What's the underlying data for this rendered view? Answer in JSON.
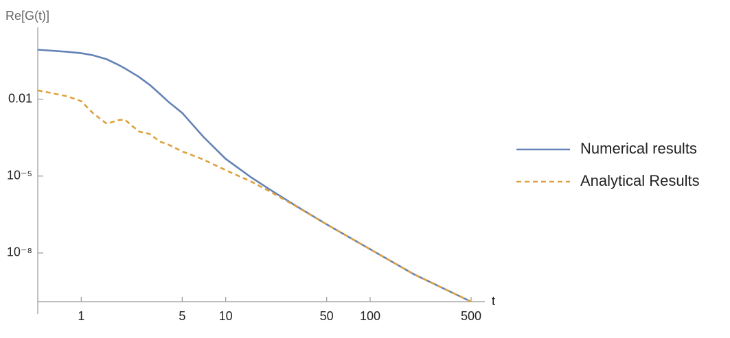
{
  "chart_data": {
    "type": "line",
    "x_label": "t",
    "y_label": "Re[G(t)]",
    "x": [
      0.5,
      0.8,
      1,
      1.2,
      1.5,
      1.8,
      2,
      2.5,
      3,
      3.5,
      4,
      5,
      7,
      10,
      15,
      20,
      30,
      50,
      100,
      200,
      500
    ],
    "series": [
      {
        "name": "Numerical results",
        "color": "#6482b6",
        "dashed": false,
        "values": [
          0.85,
          0.7,
          0.62,
          0.52,
          0.36,
          0.22,
          0.16,
          0.075,
          0.035,
          0.016,
          0.008,
          0.0029,
          0.00034,
          4.7e-05,
          8.9e-06,
          3.1e-06,
          7.4e-07,
          1.3e-07,
          1.4e-08,
          1.5e-09,
          1.26e-10
        ]
      },
      {
        "name": "Analytical Results",
        "color": "#dca13e",
        "dashed": true,
        "values": [
          0.022,
          0.013,
          0.0083,
          0.0029,
          0.0011,
          0.0015,
          0.0016,
          0.00055,
          0.00043,
          0.00022,
          0.00017,
          9.2e-05,
          4.4e-05,
          1.7e-05,
          6.1e-06,
          2.6e-06,
          7.1e-07,
          1.3e-07,
          1.4e-08,
          1.5e-09,
          1.26e-10
        ]
      }
    ],
    "x_log": true,
    "y_log": true,
    "xlim": [
      0.5,
      500
    ],
    "ylim": [
      1.26e-10,
      3
    ],
    "xticks": [
      1,
      5,
      10,
      50,
      100,
      500
    ],
    "yticks": [
      0.01,
      {
        "value": 1e-05,
        "label": "10⁻⁵"
      },
      {
        "value": 1e-08,
        "label": "10⁻⁸"
      }
    ],
    "legend": "right"
  }
}
